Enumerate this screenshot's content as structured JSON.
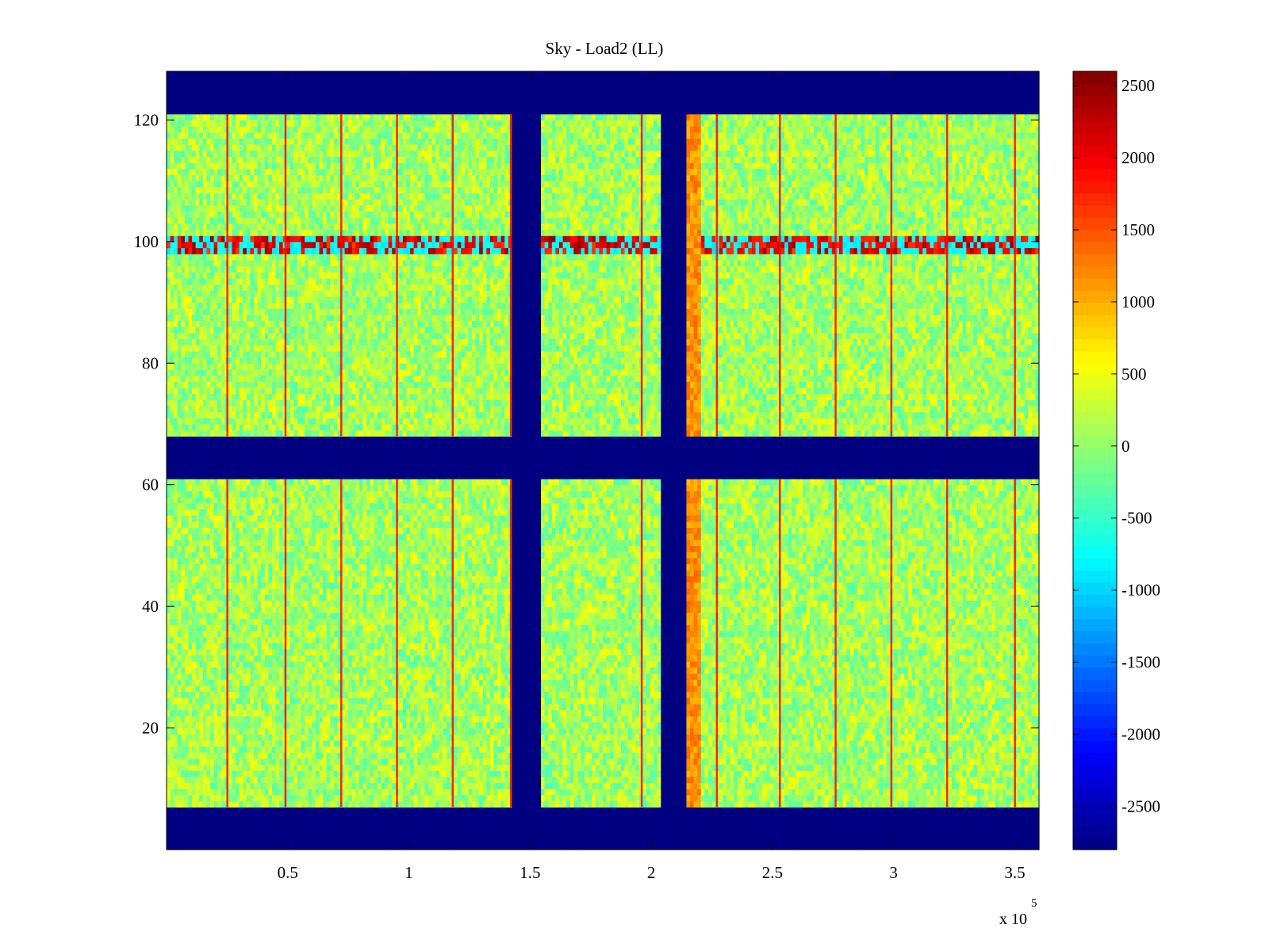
{
  "chart_data": {
    "type": "heatmap",
    "title": "Sky - Load2 (LL)",
    "xlabel": "",
    "ylabel": "",
    "x_exponent_label": "x 10",
    "x_exponent_power": "5",
    "xlim": [
      0,
      360000
    ],
    "ylim": [
      0,
      128
    ],
    "x_ticks": [
      {
        "value": 50000,
        "label": "0.5"
      },
      {
        "value": 100000,
        "label": "1"
      },
      {
        "value": 150000,
        "label": "1.5"
      },
      {
        "value": 200000,
        "label": "2"
      },
      {
        "value": 250000,
        "label": "2.5"
      },
      {
        "value": 300000,
        "label": "3"
      },
      {
        "value": 350000,
        "label": "3.5"
      }
    ],
    "y_ticks": [
      {
        "value": 20,
        "label": "20"
      },
      {
        "value": 40,
        "label": "40"
      },
      {
        "value": 60,
        "label": "60"
      },
      {
        "value": 80,
        "label": "80"
      },
      {
        "value": 100,
        "label": "100"
      },
      {
        "value": 120,
        "label": "120"
      }
    ],
    "colorbar": {
      "colormap": "jet",
      "clim": [
        -2800,
        2600
      ],
      "ticks": [
        {
          "value": 2500,
          "label": "2500"
        },
        {
          "value": 2000,
          "label": "2000"
        },
        {
          "value": 1500,
          "label": "1500"
        },
        {
          "value": 1000,
          "label": "1000"
        },
        {
          "value": 500,
          "label": "500"
        },
        {
          "value": 0,
          "label": "0"
        },
        {
          "value": -500,
          "label": "-500"
        },
        {
          "value": -1000,
          "label": "-1000"
        },
        {
          "value": -1500,
          "label": "-1500"
        },
        {
          "value": -2000,
          "label": "-2000"
        },
        {
          "value": -2500,
          "label": "-2500"
        }
      ]
    },
    "background_value": 100,
    "masked_value": -2800,
    "masked_rows": [
      [
        0,
        7
      ],
      [
        61,
        68
      ],
      [
        121,
        128
      ]
    ],
    "masked_columns": [
      [
        142000,
        154000
      ],
      [
        204000,
        215000
      ]
    ],
    "hot_row_band": [
      98,
      101
    ],
    "bright_column_band": [
      215000,
      220000
    ],
    "stripe_columns": [
      25000,
      49000,
      72000,
      95000,
      118000,
      142000,
      196000,
      227000,
      253000,
      276000,
      299000,
      322000,
      350000
    ],
    "grid": false
  }
}
